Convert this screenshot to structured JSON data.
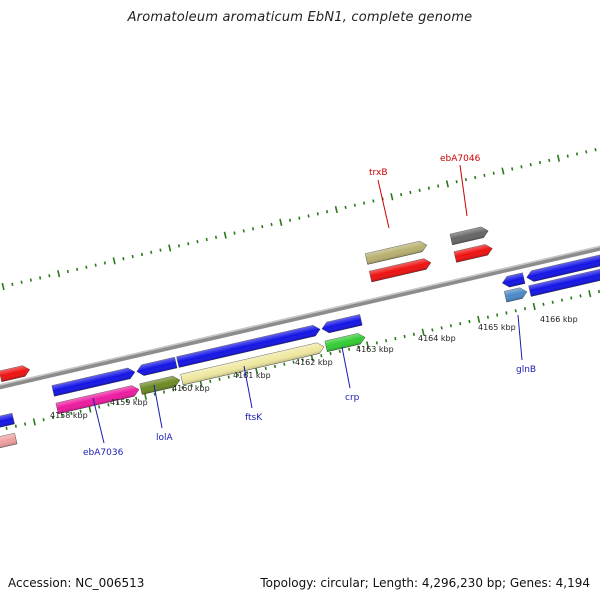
{
  "title": "Aromatoleum aromaticum EbN1, complete genome",
  "footer": {
    "accession": "Accession: NC_006513",
    "summary": "Topology: circular; Length: 4,296,230 bp; Genes: 4,194"
  },
  "scale_labels": [
    "4158 kbp",
    "4159 kbp",
    "4160 kbp",
    "4161 kbp",
    "4162 kbp",
    "4163 kbp",
    "4164 kbp",
    "4165 kbp",
    "4166 kbp"
  ],
  "gene_labels": [
    {
      "id": "ebA7036",
      "text": "ebA7036",
      "color": "#1a1ab4"
    },
    {
      "id": "lolA",
      "text": "lolA",
      "color": "#1a1ab4"
    },
    {
      "id": "ftsK",
      "text": "ftsK",
      "color": "#1a1ab4"
    },
    {
      "id": "crp",
      "text": "crp",
      "color": "#1a1ab4"
    },
    {
      "id": "glnB",
      "text": "glnB",
      "color": "#1a1ab4"
    },
    {
      "id": "trxB",
      "text": "trxB",
      "color": "#cc0000"
    },
    {
      "id": "ebA7046",
      "text": "ebA7046",
      "color": "#cc0000"
    }
  ],
  "colors": {
    "backbone": "#8c8c8c",
    "tick": "#2a7a1a",
    "gene_forward": "#1414e6",
    "gene_reverse_red": "#ee1111",
    "ftsK": "#efe8a0",
    "lolA": "#6b8a22",
    "ebA7036": "#ee1aa0",
    "crp": "#33cc33",
    "glnB": "#4a88c8",
    "trxB": "#b8b070",
    "ebA7046": "#666666",
    "pink": "#f0a0a0"
  }
}
